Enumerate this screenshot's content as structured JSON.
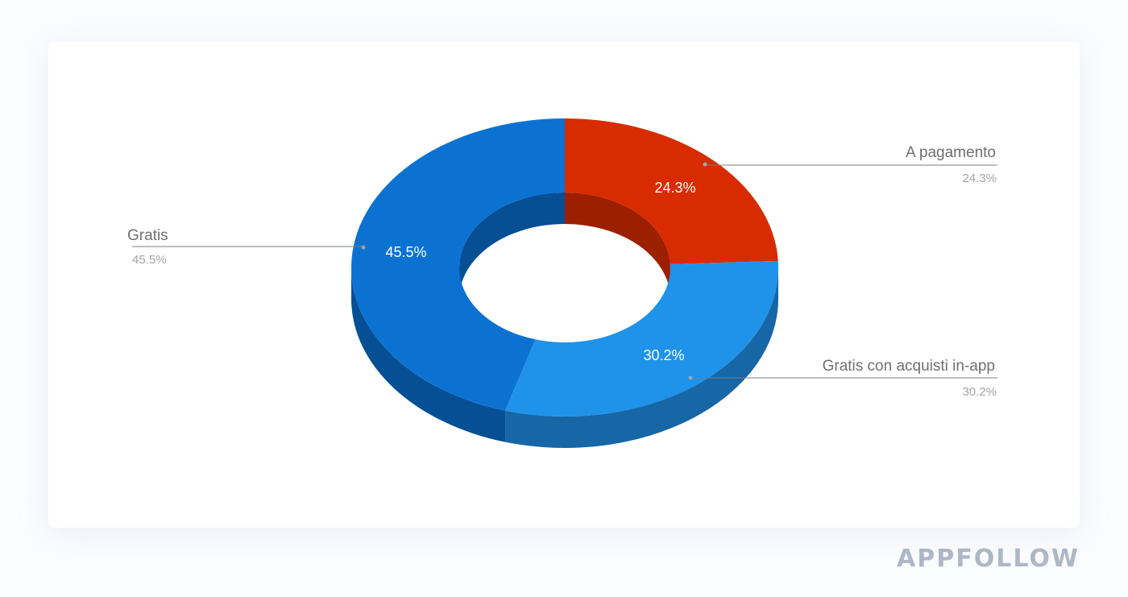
{
  "chart_data": {
    "type": "pie",
    "style": "3d-donut",
    "legend": "callout-labels",
    "series": [
      {
        "name": "Gratis",
        "value": 45.5,
        "value_label": "45.5%",
        "color": "#0b72d2",
        "side_color": "#064f94"
      },
      {
        "name": "A pagamento",
        "value": 24.3,
        "value_label": "24.3%",
        "color": "#d92b00",
        "side_color": "#9c1f00"
      },
      {
        "name": "Gratis con acquisti in-app",
        "value": 30.2,
        "value_label": "30.2%",
        "color": "#1e93e9",
        "side_color": "#1766a6"
      }
    ]
  },
  "brand": {
    "logo_text": "APPFOLLOW",
    "color": "#aeb7c7"
  }
}
